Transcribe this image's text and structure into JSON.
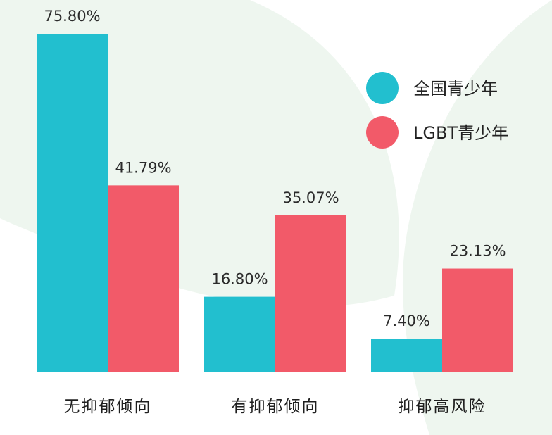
{
  "chart_data": {
    "type": "bar",
    "categories": [
      "无抑郁倾向",
      "有抑郁倾向",
      "抑郁高风险"
    ],
    "series": [
      {
        "name": "全国青少年",
        "values": [
          75.8,
          16.8,
          7.4
        ],
        "color": "#22bfcf"
      },
      {
        "name": "LGBT青少年",
        "values": [
          41.79,
          35.07,
          23.13
        ],
        "color": "#f25a69"
      }
    ],
    "value_labels": [
      [
        "75.80%",
        "16.80%",
        "7.40%"
      ],
      [
        "41.79%",
        "35.07%",
        "23.13%"
      ]
    ],
    "ylim": [
      0,
      80
    ],
    "grid": false,
    "legend_position": "top-right",
    "background_shape_color": "#eef6ef"
  }
}
